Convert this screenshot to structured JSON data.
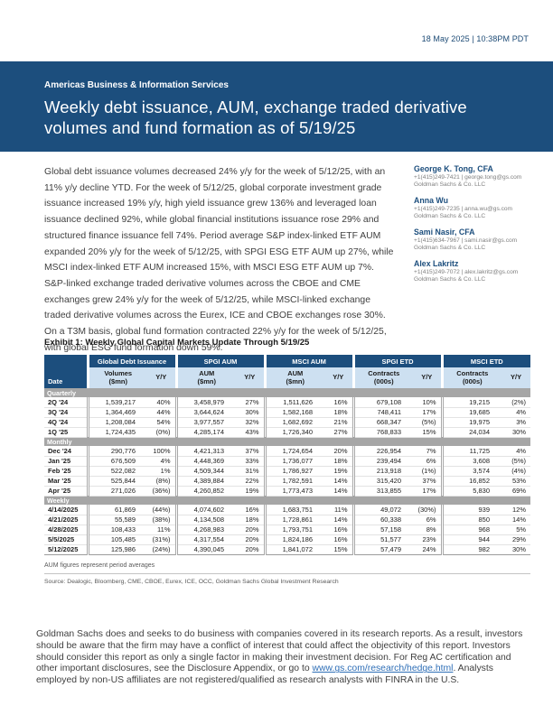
{
  "page": {
    "datetime": "18 May 2025 | 10:38PM PDT"
  },
  "header": {
    "eyebrow": "Americas Business & Information Services",
    "title": "Weekly debt issuance, AUM, exchange traded derivative volumes and fund formation as of 5/19/25"
  },
  "article": {
    "body": "Global debt issuance volumes decreased 24% y/y for the week of 5/12/25, with an 11% y/y decline YTD. For the week of 5/12/25, global corporate investment grade issuance increased 19% y/y, high yield issuance grew 136% and leveraged loan issuance declined 92%, while global financial institutions issuance rose 29% and structured finance issuance fell 74%. Period average S&P index-linked ETF AUM expanded 20% y/y for the week of 5/12/25, with SPGI ESG ETF AUM up 27%, while MSCI index-linked ETF AUM increased 15%, with MSCI ESG ETF AUM up 7%. S&P-linked exchange traded derivative volumes across the CBOE and CME exchanges grew 24% y/y for the week of 5/12/25, while MSCI-linked exchange traded derivative volumes across the Eurex, ICE and CBOE exchanges rose 30%. On a T3M basis, global fund formation contracted 22% y/y for the week of 5/12/25, with global ESG fund formation down 59%."
  },
  "authors": [
    {
      "name": "George K. Tong, CFA",
      "contact": "+1(415)249-7421 | george.tong@gs.com",
      "firm": "Goldman Sachs & Co. LLC"
    },
    {
      "name": "Anna Wu",
      "contact": "+1(415)249-7235 | anna.wu@gs.com",
      "firm": "Goldman Sachs & Co. LLC"
    },
    {
      "name": "Sami Nasir, CFA",
      "contact": "+1(415)634-7967 | sami.nasir@gs.com",
      "firm": "Goldman Sachs & Co. LLC"
    },
    {
      "name": "Alex Lakritz",
      "contact": "+1(415)249-7072 | alex.lakritz@gs.com",
      "firm": "Goldman Sachs & Co. LLC"
    }
  ],
  "exhibit": {
    "title": "Exhibit 1: Weekly Global Capital Markets Update Through 5/19/25",
    "table": {
      "date_header": "Date",
      "groups": [
        {
          "label": "Global Debt Issuance",
          "col1": "Volumes\n($mn)",
          "col2": "Y/Y"
        },
        {
          "label": "SPGI AUM",
          "col1": "AUM\n($mn)",
          "col2": "Y/Y"
        },
        {
          "label": "MSCI AUM",
          "col1": "AUM\n($mn)",
          "col2": "Y/Y"
        },
        {
          "label": "SPGI ETD",
          "col1": "Contracts\n(000s)",
          "col2": "Y/Y"
        },
        {
          "label": "MSCI ETD",
          "col1": "Contracts\n(000s)",
          "col2": "Y/Y"
        }
      ],
      "sections": [
        {
          "label": "Quarterly",
          "rows": [
            {
              "date": "2Q '24",
              "values": [
                "1,539,217",
                "40%",
                "3,458,979",
                "27%",
                "1,511,626",
                "16%",
                "679,108",
                "10%",
                "19,215",
                "(2%)"
              ]
            },
            {
              "date": "3Q '24",
              "values": [
                "1,364,469",
                "44%",
                "3,644,624",
                "30%",
                "1,582,168",
                "18%",
                "748,411",
                "17%",
                "19,685",
                "4%"
              ]
            },
            {
              "date": "4Q '24",
              "values": [
                "1,208,084",
                "54%",
                "3,977,557",
                "32%",
                "1,682,692",
                "21%",
                "668,347",
                "(5%)",
                "19,975",
                "3%"
              ]
            },
            {
              "date": "1Q '25",
              "values": [
                "1,724,435",
                "(0%)",
                "4,285,174",
                "43%",
                "1,726,340",
                "27%",
                "768,833",
                "15%",
                "24,034",
                "30%"
              ]
            }
          ]
        },
        {
          "label": "Monthly",
          "rows": [
            {
              "date": "Dec '24",
              "values": [
                "290,776",
                "100%",
                "4,421,313",
                "37%",
                "1,724,654",
                "20%",
                "226,954",
                "7%",
                "11,725",
                "4%"
              ]
            },
            {
              "date": "Jan '25",
              "values": [
                "676,509",
                "4%",
                "4,448,369",
                "33%",
                "1,736,077",
                "18%",
                "239,494",
                "6%",
                "3,608",
                "(5%)"
              ]
            },
            {
              "date": "Feb '25",
              "values": [
                "522,082",
                "1%",
                "4,509,344",
                "31%",
                "1,786,927",
                "19%",
                "213,918",
                "(1%)",
                "3,574",
                "(4%)"
              ]
            },
            {
              "date": "Mar '25",
              "values": [
                "525,844",
                "(8%)",
                "4,389,884",
                "22%",
                "1,782,591",
                "14%",
                "315,420",
                "37%",
                "16,852",
                "53%"
              ]
            },
            {
              "date": "Apr '25",
              "values": [
                "271,026",
                "(36%)",
                "4,260,852",
                "19%",
                "1,773,473",
                "14%",
                "313,855",
                "17%",
                "5,830",
                "69%"
              ]
            }
          ]
        },
        {
          "label": "Weekly",
          "rows": [
            {
              "date": "4/14/2025",
              "values": [
                "61,869",
                "(44%)",
                "4,074,602",
                "16%",
                "1,683,751",
                "11%",
                "49,072",
                "(30%)",
                "939",
                "12%"
              ]
            },
            {
              "date": "4/21/2025",
              "values": [
                "55,589",
                "(38%)",
                "4,134,508",
                "18%",
                "1,728,861",
                "14%",
                "60,338",
                "6%",
                "850",
                "14%"
              ]
            },
            {
              "date": "4/28/2025",
              "values": [
                "108,433",
                "11%",
                "4,268,983",
                "20%",
                "1,793,751",
                "16%",
                "57,158",
                "8%",
                "968",
                "5%"
              ]
            },
            {
              "date": "5/5/2025",
              "values": [
                "105,485",
                "(31%)",
                "4,317,554",
                "20%",
                "1,824,186",
                "16%",
                "51,577",
                "23%",
                "944",
                "29%"
              ]
            },
            {
              "date": "5/12/2025",
              "values": [
                "125,986",
                "(24%)",
                "4,390,045",
                "20%",
                "1,841,072",
                "15%",
                "57,479",
                "24%",
                "982",
                "30%"
              ]
            }
          ]
        }
      ]
    },
    "footnote": "AUM figures represent period averages",
    "source": "Source: Dealogic, Bloomberg, CME, CBOE, Eurex, ICE, OCC, Goldman Sachs Global Investment Research"
  },
  "footer": {
    "text_before_link": "Goldman Sachs does and seeks to do business with companies covered in its research reports. As a result, investors should be aware that the firm may have a conflict of interest that could affect the objectivity of this report. Investors should consider this report as only a single factor in making their investment decision. For Reg AC certification and other important disclosures, see the Disclosure Appendix, or go to ",
    "link": "www.gs.com/research/hedge.html",
    "text_after_link": ". Analysts employed by non-US affiliates are not registered/qualified as research analysts with FINRA in the U.S."
  },
  "colors": {
    "brand_navy": "#1c4e7d",
    "subheader_blue": "#cde0f1",
    "section_gray": "#a6a6a6",
    "link_blue": "#2f6fb7"
  }
}
